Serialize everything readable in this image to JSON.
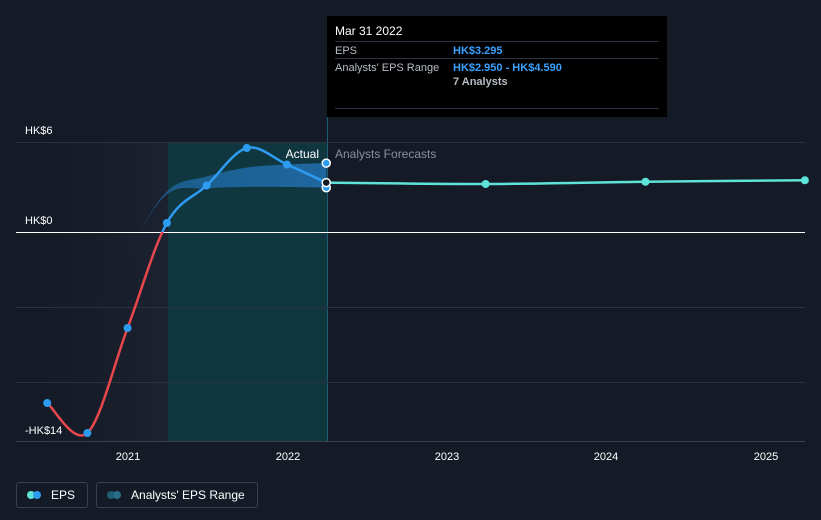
{
  "chart_data": {
    "type": "line",
    "y_axis_labels": [
      "HK$6",
      "HK$0",
      "-HK$14"
    ],
    "x_ticks": [
      "2021",
      "2022",
      "2023",
      "2024",
      "2025"
    ],
    "region_labels": {
      "actual": "Actual",
      "forecast": "Analysts Forecasts"
    },
    "ylim": [
      -14,
      6
    ],
    "series": [
      {
        "name": "EPS",
        "points": [
          {
            "x": "2020-06-30",
            "y": -11.4
          },
          {
            "x": "2020-09-30",
            "y": -13.4
          },
          {
            "x": "2020-12-31",
            "y": -6.4
          },
          {
            "x": "2021-03-31",
            "y": 0.6
          },
          {
            "x": "2021-06-30",
            "y": 3.1
          },
          {
            "x": "2021-09-30",
            "y": 5.6
          },
          {
            "x": "2021-12-31",
            "y": 4.5
          },
          {
            "x": "2022-03-31",
            "y": 3.295
          }
        ]
      },
      {
        "name": "EPS forecast",
        "points": [
          {
            "x": "2022-03-31",
            "y": 3.295
          },
          {
            "x": "2023-03-31",
            "y": 3.2
          },
          {
            "x": "2024-03-31",
            "y": 3.35
          },
          {
            "x": "2025-03-31",
            "y": 3.45
          }
        ]
      }
    ],
    "eps_range": {
      "name": "Analysts' EPS Range",
      "points": [
        {
          "x": "2020-06-30",
          "low": -11.4,
          "high": -11.4
        },
        {
          "x": "2020-12-31",
          "low": -1.5,
          "high": -1.5
        },
        {
          "x": "2021-03-31",
          "low": 2.5,
          "high": 2.7
        },
        {
          "x": "2021-06-30",
          "low": 2.9,
          "high": 3.7
        },
        {
          "x": "2021-09-30",
          "low": 3.0,
          "high": 4.3
        },
        {
          "x": "2021-12-31",
          "low": 3.0,
          "high": 4.5
        },
        {
          "x": "2022-03-31",
          "low": 2.95,
          "high": 4.59
        }
      ]
    },
    "highlight_markers": [
      {
        "x": "2022-03-31",
        "y": 4.59
      },
      {
        "x": "2022-03-31",
        "y": 2.95
      }
    ],
    "colors": {
      "eps_negative": "#e8474e",
      "eps_positive": "#2d9cf0",
      "forecast": "#5de3d7",
      "range": "#2170b0"
    }
  },
  "tooltip": {
    "date": "Mar 31 2022",
    "rows": [
      {
        "label": "EPS",
        "value": "HK$3.295"
      },
      {
        "label": "Analysts' EPS Range",
        "value": "HK$2.950 - HK$4.590"
      }
    ],
    "analysts": "7 Analysts"
  },
  "legend": {
    "eps_label": "EPS",
    "range_label": "Analysts' EPS Range"
  }
}
